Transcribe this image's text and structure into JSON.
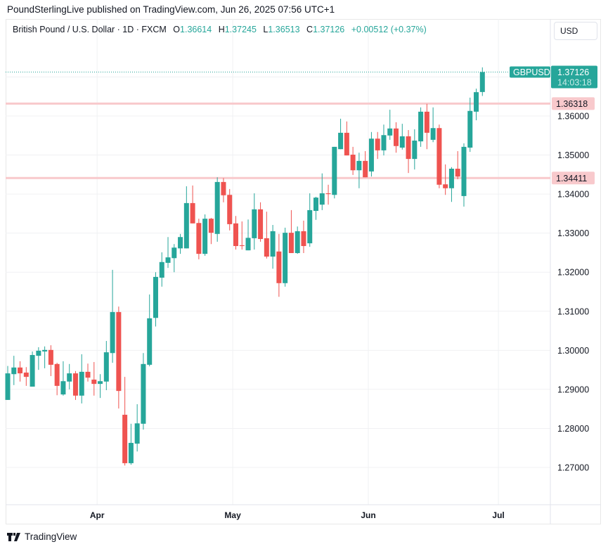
{
  "published": "PoundSterlingLive published on TradingView.com, Jun 26, 2025 07:56 UTC+1",
  "legend": {
    "symbol": "British Pound / U.S. Dollar · 1D · FXCM",
    "o_label": "O",
    "o": "1.36614",
    "h_label": "H",
    "h": "1.37245",
    "l_label": "L",
    "l": "1.36513",
    "c_label": "C",
    "c": "1.37126",
    "change": "+0.00512 (+0.37%)"
  },
  "currency_button": "USD",
  "footer": {
    "brand": "TradingView"
  },
  "colors": {
    "up": "#26a69a",
    "down": "#ef5350",
    "level": "#f8c9cc",
    "grid": "#f0f1f3"
  },
  "chart_data": {
    "type": "candlestick",
    "symbol_tag": "GBPUSD",
    "last_price": "1.37126",
    "countdown": "14:03:18",
    "ylim": [
      1.262,
      1.383
    ],
    "y_ticks": [
      "1.27000",
      "1.28000",
      "1.29000",
      "1.30000",
      "1.31000",
      "1.32000",
      "1.33000",
      "1.34000",
      "1.35000",
      "1.36000"
    ],
    "x_ticks": [
      {
        "label": "Apr",
        "index": 14.5
      },
      {
        "label": "May",
        "index": 36.5
      },
      {
        "label": "Jun",
        "index": 58.5
      },
      {
        "label": "Jul",
        "index": 79.6
      }
    ],
    "levels": [
      {
        "label": "1.36318",
        "value": 1.36318
      },
      {
        "label": "1.34411",
        "value": 1.34411
      }
    ],
    "ohlc": [
      [
        1.2873,
        1.296,
        1.2873,
        1.2941
      ],
      [
        1.2939,
        1.2986,
        1.2911,
        1.2956
      ],
      [
        1.2956,
        1.2972,
        1.292,
        1.2941
      ],
      [
        1.2943,
        1.2957,
        1.2909,
        1.2932
      ],
      [
        1.2907,
        1.2997,
        1.2907,
        1.2988
      ],
      [
        1.2986,
        1.3008,
        1.295,
        1.2999
      ],
      [
        1.2997,
        1.301,
        1.2954,
        1.3001
      ],
      [
        1.3001,
        1.3013,
        1.2934,
        1.2963
      ],
      [
        1.2965,
        1.2968,
        1.2885,
        1.2909
      ],
      [
        1.2887,
        1.2972,
        1.2884,
        1.2921
      ],
      [
        1.292,
        1.2965,
        1.29,
        1.2941
      ],
      [
        1.2941,
        1.2947,
        1.2873,
        1.2884
      ],
      [
        1.2884,
        1.299,
        1.2864,
        1.2945
      ],
      [
        1.2945,
        1.2966,
        1.292,
        1.293
      ],
      [
        1.2925,
        1.297,
        1.2884,
        1.2914
      ],
      [
        1.2914,
        1.2939,
        1.2878,
        1.2921
      ],
      [
        1.292,
        1.3024,
        1.2898,
        1.2995
      ],
      [
        1.2993,
        1.3206,
        1.2968,
        1.3098
      ],
      [
        1.3098,
        1.3112,
        1.2851,
        1.2896
      ],
      [
        1.2835,
        1.2932,
        1.2705,
        1.2711
      ],
      [
        1.2711,
        1.2812,
        1.2707,
        1.2763
      ],
      [
        1.2761,
        1.2862,
        1.2741,
        1.2813
      ],
      [
        1.2812,
        1.2993,
        1.2797,
        1.2965
      ],
      [
        1.2963,
        1.3143,
        1.2959,
        1.3082
      ],
      [
        1.3083,
        1.32,
        1.3061,
        1.3188
      ],
      [
        1.3186,
        1.3251,
        1.3163,
        1.3226
      ],
      [
        1.3224,
        1.329,
        1.3211,
        1.3238
      ],
      [
        1.3236,
        1.3272,
        1.32,
        1.3263
      ],
      [
        1.3261,
        1.3298,
        1.3247,
        1.329
      ],
      [
        1.3261,
        1.342,
        1.3261,
        1.3377
      ],
      [
        1.3377,
        1.3422,
        1.3325,
        1.3325
      ],
      [
        1.3326,
        1.3337,
        1.3233,
        1.3247
      ],
      [
        1.3247,
        1.3348,
        1.3242,
        1.3337
      ],
      [
        1.3337,
        1.3339,
        1.3272,
        1.3301
      ],
      [
        1.3298,
        1.3443,
        1.3278,
        1.3431
      ],
      [
        1.3431,
        1.3441,
        1.3379,
        1.3397
      ],
      [
        1.3398,
        1.3413,
        1.3307,
        1.3323
      ],
      [
        1.3325,
        1.3344,
        1.3258,
        1.3267
      ],
      [
        1.3269,
        1.333,
        1.3258,
        1.3267
      ],
      [
        1.3256,
        1.3335,
        1.3256,
        1.3288
      ],
      [
        1.3287,
        1.3402,
        1.3258,
        1.3361
      ],
      [
        1.3361,
        1.3379,
        1.3278,
        1.3285
      ],
      [
        1.3287,
        1.3355,
        1.3235,
        1.324
      ],
      [
        1.324,
        1.3321,
        1.3209,
        1.3305
      ],
      [
        1.3253,
        1.3298,
        1.3137,
        1.3172
      ],
      [
        1.3172,
        1.3314,
        1.3163,
        1.3301
      ],
      [
        1.3301,
        1.3359,
        1.3249,
        1.3249
      ],
      [
        1.3249,
        1.3317,
        1.3247,
        1.3305
      ],
      [
        1.3305,
        1.3332,
        1.3249,
        1.3267
      ],
      [
        1.3274,
        1.3402,
        1.3265,
        1.3359
      ],
      [
        1.3357,
        1.3393,
        1.3334,
        1.3391
      ],
      [
        1.3373,
        1.3453,
        1.3359,
        1.3402
      ],
      [
        1.3402,
        1.3424,
        1.3373,
        1.34
      ],
      [
        1.3398,
        1.3521,
        1.3389,
        1.3521
      ],
      [
        1.3515,
        1.3593,
        1.3515,
        1.3557
      ],
      [
        1.3557,
        1.3586,
        1.3499,
        1.3499
      ],
      [
        1.3501,
        1.3521,
        1.3449,
        1.3461
      ],
      [
        1.3461,
        1.3506,
        1.3415,
        1.3485
      ],
      [
        1.3485,
        1.351,
        1.3443,
        1.3443
      ],
      [
        1.3458,
        1.3559,
        1.3445,
        1.3542
      ],
      [
        1.3542,
        1.3559,
        1.349,
        1.3512
      ],
      [
        1.3512,
        1.3578,
        1.3499,
        1.3551
      ],
      [
        1.355,
        1.3616,
        1.3539,
        1.3568
      ],
      [
        1.3568,
        1.3584,
        1.3506,
        1.3523
      ],
      [
        1.3519,
        1.358,
        1.3514,
        1.3548
      ],
      [
        1.3548,
        1.3564,
        1.3454,
        1.349
      ],
      [
        1.349,
        1.3566,
        1.3463,
        1.3537
      ],
      [
        1.3535,
        1.3622,
        1.3521,
        1.3611
      ],
      [
        1.3611,
        1.3631,
        1.3515,
        1.3557
      ],
      [
        1.3539,
        1.3622,
        1.3533,
        1.3569
      ],
      [
        1.3569,
        1.3578,
        1.3415,
        1.3424
      ],
      [
        1.3425,
        1.3476,
        1.3398,
        1.3415
      ],
      [
        1.3415,
        1.3469,
        1.338,
        1.3465
      ],
      [
        1.3465,
        1.351,
        1.3438,
        1.3445
      ],
      [
        1.3395,
        1.353,
        1.3368,
        1.3521
      ],
      [
        1.3519,
        1.3647,
        1.3508,
        1.3613
      ],
      [
        1.3611,
        1.367,
        1.3589,
        1.3661
      ],
      [
        1.36614,
        1.37245,
        1.36513,
        1.37126
      ]
    ]
  }
}
